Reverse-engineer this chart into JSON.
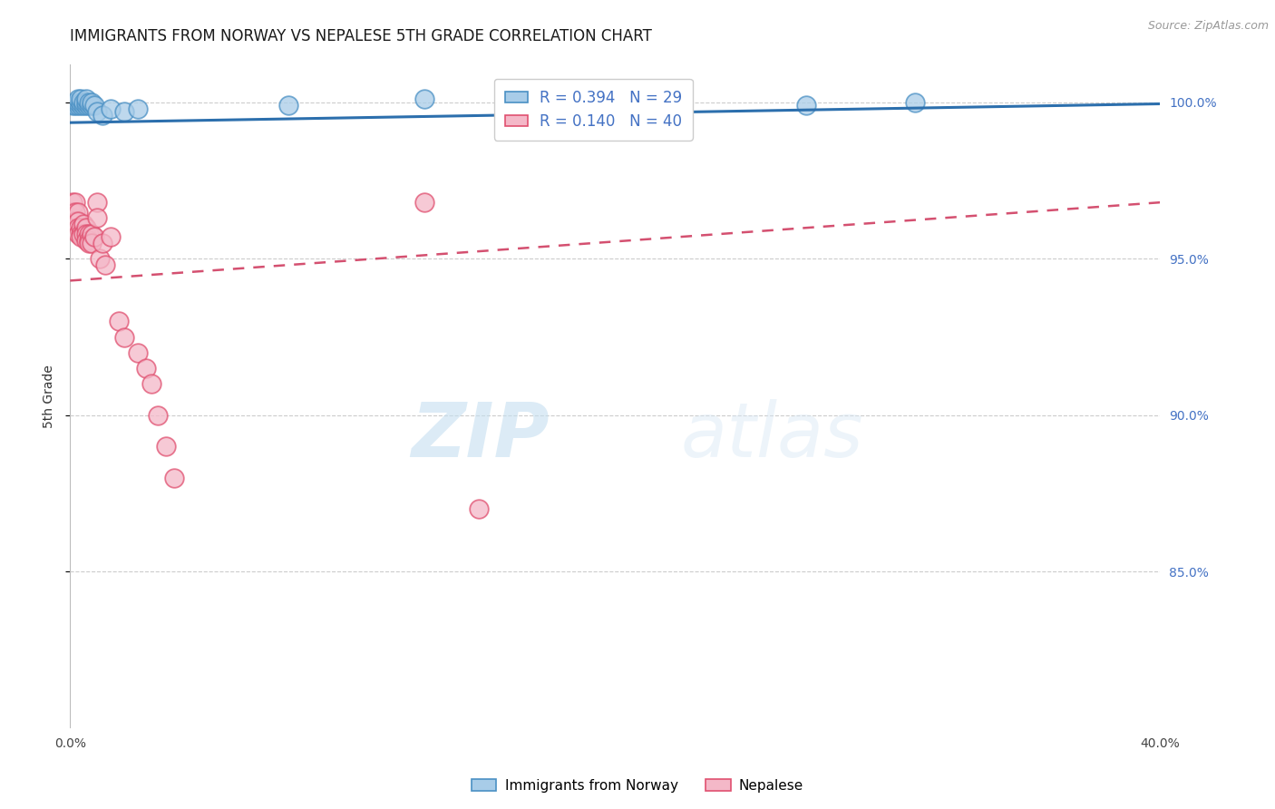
{
  "title": "IMMIGRANTS FROM NORWAY VS NEPALESE 5TH GRADE CORRELATION CHART",
  "source": "Source: ZipAtlas.com",
  "ylabel": "5th Grade",
  "xmin": 0.0,
  "xmax": 0.4,
  "ymin": 0.8,
  "ymax": 1.012,
  "yticks": [
    0.85,
    0.9,
    0.95,
    1.0
  ],
  "ytick_labels": [
    "85.0%",
    "90.0%",
    "95.0%",
    "100.0%"
  ],
  "xticks": [
    0.0,
    0.05,
    0.1,
    0.15,
    0.2,
    0.25,
    0.3,
    0.35,
    0.4
  ],
  "xtick_labels": [
    "0.0%",
    "",
    "",
    "",
    "",
    "",
    "",
    "",
    "40.0%"
  ],
  "norway_R": 0.394,
  "norway_N": 29,
  "nepalese_R": 0.14,
  "nepalese_N": 40,
  "norway_color": "#a8cce8",
  "nepalese_color": "#f4b8c8",
  "norway_edge_color": "#4a90c4",
  "nepalese_edge_color": "#e05070",
  "norway_line_color": "#2c6fad",
  "nepalese_line_color": "#d45070",
  "norway_scatter_x": [
    0.001,
    0.002,
    0.002,
    0.003,
    0.003,
    0.003,
    0.004,
    0.004,
    0.004,
    0.005,
    0.005,
    0.006,
    0.006,
    0.006,
    0.007,
    0.007,
    0.008,
    0.008,
    0.009,
    0.01,
    0.012,
    0.015,
    0.02,
    0.025,
    0.08,
    0.13,
    0.17,
    0.27,
    0.31
  ],
  "norway_scatter_y": [
    0.999,
    1.0,
    0.999,
    0.999,
    1.0,
    1.001,
    0.999,
    1.0,
    1.001,
    0.999,
    1.0,
    0.999,
    1.0,
    1.001,
    0.999,
    1.0,
    0.999,
    1.0,
    0.999,
    0.997,
    0.996,
    0.998,
    0.997,
    0.998,
    0.999,
    1.001,
    0.998,
    0.999,
    1.0
  ],
  "nepalese_scatter_x": [
    0.001,
    0.001,
    0.001,
    0.002,
    0.002,
    0.002,
    0.003,
    0.003,
    0.003,
    0.003,
    0.004,
    0.004,
    0.004,
    0.005,
    0.005,
    0.006,
    0.006,
    0.006,
    0.007,
    0.007,
    0.007,
    0.008,
    0.008,
    0.009,
    0.01,
    0.01,
    0.011,
    0.012,
    0.013,
    0.015,
    0.018,
    0.02,
    0.025,
    0.028,
    0.03,
    0.032,
    0.035,
    0.038,
    0.13,
    0.15
  ],
  "nepalese_scatter_y": [
    0.968,
    0.965,
    0.963,
    0.968,
    0.965,
    0.962,
    0.965,
    0.962,
    0.96,
    0.958,
    0.96,
    0.958,
    0.957,
    0.961,
    0.958,
    0.96,
    0.958,
    0.956,
    0.958,
    0.956,
    0.955,
    0.958,
    0.955,
    0.957,
    0.968,
    0.963,
    0.95,
    0.955,
    0.948,
    0.957,
    0.93,
    0.925,
    0.92,
    0.915,
    0.91,
    0.9,
    0.89,
    0.88,
    0.968,
    0.87
  ],
  "watermark_zip": "ZIP",
  "watermark_atlas": "atlas",
  "background_color": "#ffffff",
  "grid_color": "#cccccc",
  "right_axis_color": "#4472c4",
  "title_fontsize": 12,
  "tick_fontsize": 10,
  "norway_line_y0": 0.9935,
  "norway_line_y1": 0.9995,
  "nepalese_line_y0": 0.943,
  "nepalese_line_y1": 0.968
}
